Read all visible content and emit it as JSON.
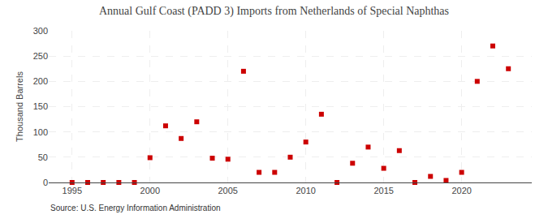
{
  "chart_data": {
    "type": "scatter",
    "title": "Annual Gulf Coast (PADD 3) Imports from Netherlands of Special Naphthas",
    "ylabel": "Thousand Barrels",
    "annotations": [
      "Source: U.S. Energy Information Administration"
    ],
    "x": [
      1995,
      1996,
      1997,
      1998,
      1999,
      2000,
      2001,
      2002,
      2003,
      2004,
      2005,
      2006,
      2007,
      2008,
      2009,
      2010,
      2011,
      2012,
      2013,
      2014,
      2015,
      2016,
      2017,
      2018,
      2019,
      2020,
      2021,
      2022,
      2023
    ],
    "values": [
      0,
      0,
      0,
      0,
      0,
      49,
      112,
      87,
      120,
      48,
      46,
      220,
      20,
      20,
      50,
      80,
      135,
      0,
      38,
      70,
      28,
      63,
      0,
      12,
      4,
      20,
      200,
      270,
      225
    ],
    "color": "#cc0000",
    "marker": "square",
    "xlim": [
      1993.5,
      2024.5
    ],
    "xticks": [
      1995,
      2000,
      2005,
      2010,
      2015,
      2020
    ],
    "ylim": [
      0,
      300
    ],
    "yticks": [
      0,
      50,
      100,
      150,
      200,
      250,
      300
    ],
    "grid": true
  }
}
